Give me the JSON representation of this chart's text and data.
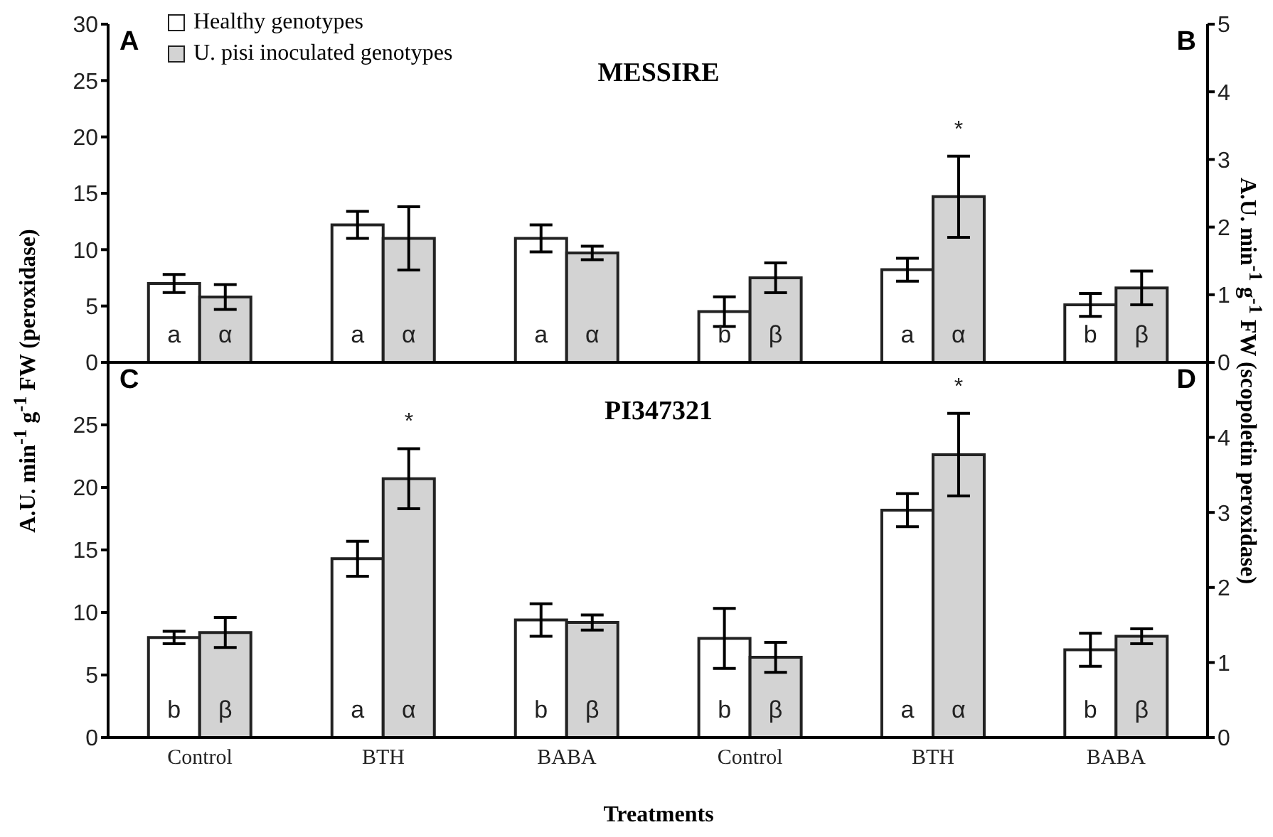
{
  "chart_data": [
    {
      "type": "bar",
      "title": "MESSIRE",
      "ylabel": "A.U. min$^{-1}$ g$^{-1}$ FW (peroxidase)",
      "categories": [
        null,
        null,
        null
      ],
      "ylim": [
        0,
        30
      ],
      "yticks": [
        0,
        5,
        10,
        15,
        20,
        25,
        30
      ],
      "tick_labels": "y",
      "legend": "top left",
      "annotations": [
        "A"
      ],
      "series": [
        {
          "name": "Healthy genotypes",
          "color": "#ffffff",
          "values": [
            7.0,
            12.2,
            11.0
          ],
          "errors": [
            0.8,
            1.2,
            1.2
          ],
          "value_labels": [
            "a",
            "a",
            "a"
          ]
        },
        {
          "name": "U. pisi inoculated genotypes",
          "color": "#d3d3d3",
          "values": [
            5.8,
            11.0,
            9.7
          ],
          "errors": [
            1.1,
            2.8,
            0.6
          ],
          "value_labels": [
            "α",
            "α",
            "α"
          ]
        }
      ]
    },
    {
      "type": "bar",
      "ylabel": "A.U. min$^{-1}$ g$^{-1}$ FW (scopoletin peroxidase)",
      "categories": [
        null,
        null,
        null
      ],
      "ylim": [
        0,
        5
      ],
      "yticks": [
        0,
        1,
        2,
        3,
        4,
        5
      ],
      "tick_labels": "y",
      "annotations": [
        "B",
        "*"
      ],
      "series": [
        {
          "color": "#ffffff",
          "values": [
            0.75,
            1.37,
            0.85
          ],
          "errors": [
            0.22,
            0.17,
            0.17
          ],
          "value_labels": [
            "b",
            "a",
            "b"
          ]
        },
        {
          "color": "#d3d3d3",
          "values": [
            1.25,
            2.45,
            1.1
          ],
          "errors": [
            0.22,
            0.6,
            0.25
          ],
          "value_labels": [
            "β",
            "α",
            "β"
          ]
        }
      ]
    },
    {
      "type": "bar",
      "title": "PI347321",
      "xlabel": "Treatments",
      "categories": [
        "Control",
        "BTH",
        "BABA"
      ],
      "ylim": [
        0,
        30
      ],
      "yticks": [
        0,
        5,
        10,
        15,
        20,
        25
      ],
      "annotations": [
        "C",
        "*"
      ],
      "series": [
        {
          "color": "#ffffff",
          "values": [
            8.0,
            14.3,
            9.4
          ],
          "errors": [
            0.5,
            1.4,
            1.3
          ],
          "value_labels": [
            "b",
            "a",
            "b"
          ]
        },
        {
          "color": "#d3d3d3",
          "values": [
            8.4,
            20.7,
            9.2
          ],
          "errors": [
            1.2,
            2.4,
            0.6
          ],
          "value_labels": [
            "β",
            "α",
            "β"
          ]
        }
      ]
    },
    {
      "type": "bar",
      "categories": [
        "Control",
        "BTH",
        "BABA"
      ],
      "ylim": [
        0,
        5
      ],
      "yticks": [
        0,
        1,
        2,
        3,
        4
      ],
      "annotations": [
        "D",
        "*"
      ],
      "series": [
        {
          "color": "#ffffff",
          "values": [
            1.32,
            3.03,
            1.17
          ],
          "errors": [
            0.4,
            0.22,
            0.22
          ],
          "value_labels": [
            "b",
            "a",
            "b"
          ]
        },
        {
          "color": "#d3d3d3",
          "values": [
            1.07,
            3.77,
            1.35
          ],
          "errors": [
            0.2,
            0.55,
            0.1
          ],
          "value_labels": [
            "β",
            "α",
            "β"
          ]
        }
      ]
    }
  ]
}
